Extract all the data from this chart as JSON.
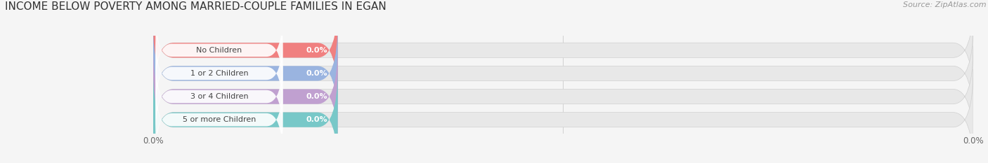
{
  "title": "INCOME BELOW POVERTY AMONG MARRIED-COUPLE FAMILIES IN EGAN",
  "source": "Source: ZipAtlas.com",
  "categories": [
    "No Children",
    "1 or 2 Children",
    "3 or 4 Children",
    "5 or more Children"
  ],
  "values": [
    0.0,
    0.0,
    0.0,
    0.0
  ],
  "bar_colors": [
    "#f08080",
    "#9ab4e0",
    "#c0a0d0",
    "#78c8c8"
  ],
  "bar_bg_color": "#e8e8e8",
  "background_color": "#f5f5f5",
  "title_fontsize": 11,
  "source_fontsize": 8,
  "category_fontsize": 8,
  "value_fontsize": 8,
  "tick_fontsize": 8.5
}
